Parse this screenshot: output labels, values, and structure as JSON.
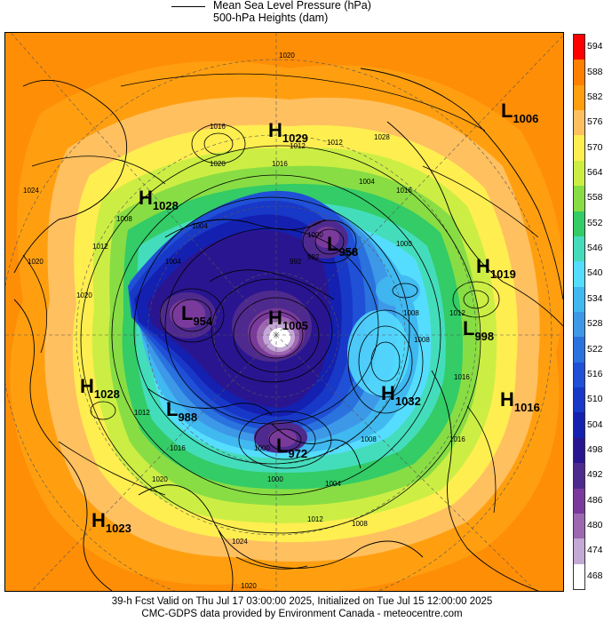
{
  "legend": {
    "line1": "Mean Sea Level Pressure (hPa)",
    "line2": "500-hPa Heights (dam)"
  },
  "colorbar": {
    "labels": [
      "594",
      "588",
      "582",
      "576",
      "570",
      "564",
      "558",
      "552",
      "546",
      "540",
      "534",
      "528",
      "522",
      "516",
      "510",
      "504",
      "498",
      "492",
      "486",
      "480",
      "474",
      "468"
    ],
    "colors": [
      "#ff0000",
      "#ff8000",
      "#ff9f10",
      "#ffc060",
      "#ffee50",
      "#ccee44",
      "#88dd44",
      "#33cc66",
      "#44ddbb",
      "#55ddff",
      "#40b8f0",
      "#3d98e8",
      "#2a72dd",
      "#1f50d6",
      "#1838c8",
      "#1420b0",
      "#2a1590",
      "#4f2a8e",
      "#7a3a9c",
      "#9c68b0",
      "#c4a8d6",
      "#ffffff"
    ]
  },
  "pressure_centers": [
    {
      "letter": "H",
      "value": "1029"
    },
    {
      "letter": "L",
      "value": "1006"
    },
    {
      "letter": "H",
      "value": "1028"
    },
    {
      "letter": "L",
      "value": "958"
    },
    {
      "letter": "H",
      "value": "1019"
    },
    {
      "letter": "L",
      "value": "954"
    },
    {
      "letter": "H",
      "value": "1005"
    },
    {
      "letter": "L",
      "value": "998"
    },
    {
      "letter": "H",
      "value": "1028"
    },
    {
      "letter": "L",
      "value": "988"
    },
    {
      "letter": "H",
      "value": "1032"
    },
    {
      "letter": "H",
      "value": "1016"
    },
    {
      "letter": "L",
      "value": "972"
    },
    {
      "letter": "H",
      "value": "1023"
    }
  ],
  "isobar_labels": [
    "1020",
    "1016",
    "1020",
    "1012",
    "1012",
    "1004",
    "1016",
    "1024",
    "1020",
    "1000",
    "1004",
    "1008",
    "1012",
    "1020",
    "1008",
    "1012",
    "1008",
    "1000",
    "1004",
    "1016",
    "1012",
    "1020",
    "1016",
    "1008",
    "1000",
    "1004",
    "1012",
    "1008",
    "1000",
    "1016",
    "1024",
    "1020",
    "1028",
    "1016",
    "992",
    "984",
    "992"
  ],
  "footer": {
    "line1": "39-h Fcst Valid on Thu Jul 17 03:00:00 2025, Initialized on Tue Jul 15 12:00:00 2025",
    "line2": "CMC-GDPS data provided by Environment Canada - meteocentre.com"
  }
}
